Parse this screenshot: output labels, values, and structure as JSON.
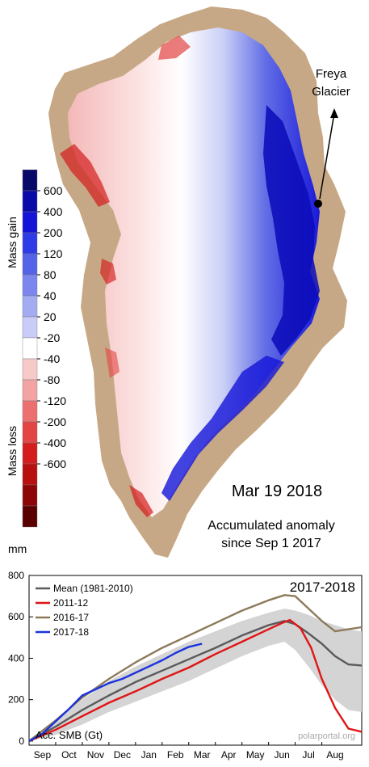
{
  "map": {
    "date": "Mar 19 2018",
    "caption_line1": "Accumulated anomaly",
    "caption_line2": "since Sep 1 2017",
    "annotation_line1": "Freya",
    "annotation_line2": "Glacier",
    "land_color": "#c7a886",
    "legend": {
      "gain_label": "Mass gain",
      "loss_label": "Mass loss",
      "unit": "mm",
      "ticks": [
        "600",
        "400",
        "200",
        "120",
        "80",
        "40",
        "20",
        "-20",
        "-40",
        "-80",
        "-120",
        "-200",
        "-400",
        "-600"
      ],
      "colors": [
        "#08086b",
        "#0a0aa8",
        "#1414d8",
        "#2f3be6",
        "#5563e8",
        "#7c86ee",
        "#a3abf2",
        "#c8ccf6",
        "#ffffff",
        "#f8c9c9",
        "#f3a3a3",
        "#ec7070",
        "#e34545",
        "#d41c1c",
        "#b80f0f",
        "#8c0606",
        "#5a0000"
      ]
    }
  },
  "chart_data": {
    "type": "line",
    "title": "2017-2018",
    "ylabel": "Acc. SMB (Gt)",
    "watermark": "polarportal.org",
    "x": [
      "Sep",
      "Oct",
      "Nov",
      "Dec",
      "Jan",
      "Feb",
      "Mar",
      "Apr",
      "May",
      "Jun",
      "Jul",
      "Aug"
    ],
    "ylim": [
      -20,
      800
    ],
    "yticks": [
      "0",
      "200",
      "400",
      "600",
      "800"
    ],
    "legend_position": "top-left",
    "series": [
      {
        "name": "Mean (1981-2010)",
        "color": "#5a5a5a",
        "points": [
          [
            0,
            0
          ],
          [
            1,
            70
          ],
          [
            2,
            150
          ],
          [
            3,
            220
          ],
          [
            4,
            285
          ],
          [
            5,
            340
          ],
          [
            6,
            395
          ],
          [
            7,
            450
          ],
          [
            8,
            510
          ],
          [
            9,
            560
          ],
          [
            9.6,
            580
          ],
          [
            10,
            565
          ],
          [
            10.5,
            520
          ],
          [
            11,
            470
          ],
          [
            11.5,
            410
          ],
          [
            12,
            370
          ],
          [
            12.5,
            365
          ]
        ]
      },
      {
        "name": "2011-12",
        "color": "#e01515",
        "points": [
          [
            0,
            0
          ],
          [
            1,
            55
          ],
          [
            2,
            120
          ],
          [
            3,
            185
          ],
          [
            4,
            240
          ],
          [
            5,
            300
          ],
          [
            6,
            355
          ],
          [
            7,
            420
          ],
          [
            8,
            480
          ],
          [
            9,
            540
          ],
          [
            9.5,
            570
          ],
          [
            9.8,
            585
          ],
          [
            10.2,
            545
          ],
          [
            10.6,
            450
          ],
          [
            11,
            300
          ],
          [
            11.5,
            160
          ],
          [
            12,
            60
          ],
          [
            12.5,
            45
          ]
        ]
      },
      {
        "name": "2016-17",
        "color": "#8d7a5b",
        "points": [
          [
            0,
            0
          ],
          [
            1,
            100
          ],
          [
            2,
            210
          ],
          [
            3,
            300
          ],
          [
            4,
            380
          ],
          [
            5,
            450
          ],
          [
            6,
            510
          ],
          [
            7,
            570
          ],
          [
            8,
            630
          ],
          [
            9,
            680
          ],
          [
            9.6,
            705
          ],
          [
            10,
            700
          ],
          [
            10.5,
            640
          ],
          [
            11,
            580
          ],
          [
            11.5,
            530
          ],
          [
            12,
            540
          ],
          [
            12.5,
            550
          ]
        ]
      },
      {
        "name": "2017-18",
        "color": "#1a33dd",
        "points": [
          [
            0,
            0
          ],
          [
            0.5,
            35
          ],
          [
            1,
            95
          ],
          [
            1.5,
            155
          ],
          [
            2,
            220
          ],
          [
            2.5,
            250
          ],
          [
            3,
            280
          ],
          [
            3.5,
            300
          ],
          [
            4,
            330
          ],
          [
            4.5,
            360
          ],
          [
            5,
            390
          ],
          [
            5.5,
            425
          ],
          [
            6,
            455
          ],
          [
            6.5,
            470
          ]
        ]
      }
    ],
    "range_band": {
      "color": "#d4d4d4",
      "upper": [
        [
          0,
          0
        ],
        [
          1,
          100
        ],
        [
          2,
          200
        ],
        [
          3,
          290
        ],
        [
          4,
          360
        ],
        [
          5,
          420
        ],
        [
          6,
          480
        ],
        [
          7,
          530
        ],
        [
          8,
          580
        ],
        [
          9,
          620
        ],
        [
          9.6,
          640
        ],
        [
          10,
          630
        ],
        [
          10.5,
          610
        ],
        [
          11,
          580
        ],
        [
          11.5,
          560
        ],
        [
          12,
          540
        ],
        [
          12.5,
          530
        ]
      ],
      "lower": [
        [
          0,
          0
        ],
        [
          1,
          30
        ],
        [
          2,
          80
        ],
        [
          3,
          140
        ],
        [
          4,
          190
        ],
        [
          5,
          240
        ],
        [
          6,
          290
        ],
        [
          7,
          350
        ],
        [
          8,
          410
        ],
        [
          9,
          460
        ],
        [
          9.6,
          480
        ],
        [
          10,
          440
        ],
        [
          10.5,
          360
        ],
        [
          11,
          270
        ],
        [
          11.5,
          200
        ],
        [
          12,
          150
        ],
        [
          12.5,
          140
        ]
      ]
    }
  }
}
